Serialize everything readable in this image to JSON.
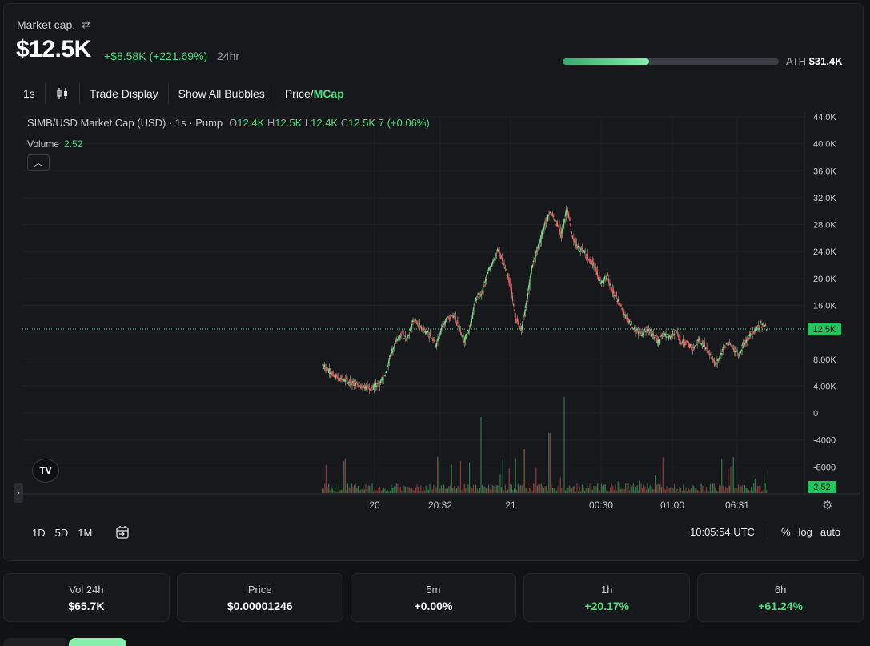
{
  "header": {
    "market_cap_label": "Market cap.",
    "market_cap_value": "$12.5K",
    "change": "+$8.58K (+221.69%)",
    "period": "24hr",
    "ath_label": "ATH",
    "ath_value": "$31.4K",
    "ath_progress_pct": 40
  },
  "toolbar": {
    "interval": "1s",
    "trade_display": "Trade Display",
    "show_bubbles": "Show All Bubbles",
    "price_label": "Price",
    "mcap_label": "MCap"
  },
  "legend": {
    "symbol": "SIMB/USD Market Cap (USD) · 1s · Pump",
    "o": "O12.4K",
    "h": "H12.5K",
    "l": "L12.4K",
    "c": "C12.5K",
    "chg": "7 (+0.06%)",
    "volume_label": "Volume",
    "volume_value": "2.52"
  },
  "chart_data": {
    "type": "line",
    "title": "SIMB/USD Market Cap (USD)",
    "y_ticks": [
      "44.0K",
      "40.0K",
      "36.0K",
      "32.0K",
      "28.0K",
      "24.0K",
      "20.0K",
      "16.0K",
      "12.0K",
      "8.00K",
      "4.00K",
      "0",
      "-4000",
      "-8000"
    ],
    "x_ticks": [
      "20",
      "20:32",
      "21",
      "00:30",
      "01:00",
      "06:31"
    ],
    "ylim": [
      -12000,
      44000
    ],
    "last_price_label": "12.5K",
    "last_volume_label": "2.52",
    "series": [
      {
        "values": [
          7200,
          6500,
          5600,
          5200,
          4900,
          4600,
          4300,
          4100,
          3900,
          3800,
          4200,
          5400,
          8500,
          10800,
          11800,
          10900,
          13800,
          13000,
          12400,
          11400,
          10200,
          12800,
          14000,
          14600,
          12800,
          10700,
          13000,
          17000,
          17800,
          20500,
          22800,
          24200,
          21600,
          19200,
          14000,
          12500,
          17000,
          22400,
          24800,
          27800,
          30000,
          28500,
          26500,
          30500,
          25800,
          24500,
          23800,
          22800,
          21400,
          19000,
          20500,
          18000,
          16500,
          14600,
          13500,
          12200,
          11800,
          12600,
          11600,
          10600,
          11800,
          11200,
          12400,
          10600,
          10400,
          9600,
          10800,
          10200,
          8800,
          7200,
          8900,
          10400,
          9800,
          8600,
          10400,
          11400,
          12600,
          13200,
          12500
        ]
      }
    ],
    "volume": "per-bar volume histogram (green/red)"
  },
  "footer": {
    "ranges": [
      "1D",
      "5D",
      "1M"
    ],
    "time": "10:05:54 UTC",
    "percent": "%",
    "log": "log",
    "auto": "auto"
  },
  "stats": [
    {
      "label": "Vol 24h",
      "value": "$65.7K",
      "positive": false
    },
    {
      "label": "Price",
      "value": "$0.00001246",
      "positive": false
    },
    {
      "label": "5m",
      "value": "+0.00%",
      "positive": false
    },
    {
      "label": "1h",
      "value": "+20.17%",
      "positive": true
    },
    {
      "label": "6h",
      "value": "+61.24%",
      "positive": true
    }
  ],
  "colors": {
    "up": "#4ade80",
    "down": "#ef4444",
    "background": "#17181b",
    "accent": "#86efac"
  }
}
